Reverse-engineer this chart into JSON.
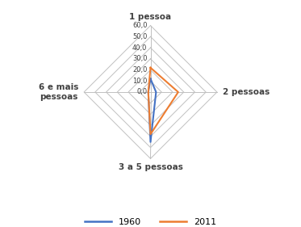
{
  "categories": [
    "1 pessoa",
    "2 pessoas",
    "3 a 5 pessoas",
    "6 e mais\npessoas"
  ],
  "series": {
    "1960": [
      12.0,
      5.0,
      45.0,
      2.0
    ],
    "2011": [
      22.0,
      25.0,
      38.0,
      2.0
    ]
  },
  "colors": {
    "1960": "#4472C4",
    "2011": "#ED7D31"
  },
  "r_max": 60.0,
  "r_ticks": [
    10.0,
    20.0,
    30.0,
    40.0,
    50.0,
    60.0
  ],
  "r_tick_labels": [
    "10,0",
    "20,0",
    "30,0",
    "40,0",
    "50,0",
    "60,0"
  ],
  "background_color": "#ffffff",
  "grid_color": "#c0c0c0",
  "label_fontsize": 7.5,
  "tick_fontsize": 6.0,
  "legend_labels": [
    "1960",
    "2011"
  ]
}
